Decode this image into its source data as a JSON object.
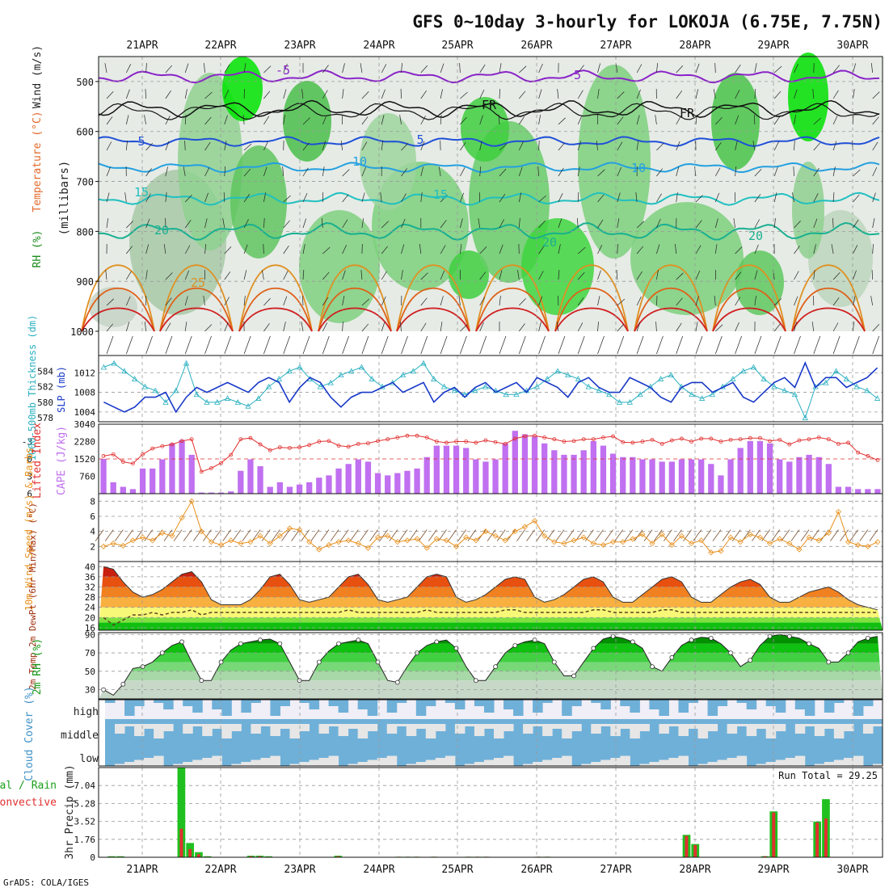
{
  "title": "GFS 0~10day 3-hourly for LOKOJA (6.75E, 7.75N)",
  "footer": "GrADS: COLA/IGES",
  "dates": [
    "21APR",
    "22APR",
    "23APR",
    "24APR",
    "25APR",
    "26APR",
    "27APR",
    "28APR",
    "29APR",
    "30APR"
  ],
  "chart_data": [
    {
      "type": "area",
      "panel": "pressure-time",
      "ylabel": "(millibars)",
      "side_labels": {
        "rh": "RH (%)",
        "temperature": "Temperature (°C)",
        "wind": "Wind (m/s)"
      },
      "yticks": [
        500,
        600,
        700,
        800,
        900,
        1000
      ],
      "ylim": [
        1000,
        450
      ],
      "contour_labels": [
        "-5",
        "-5",
        "FR",
        "FR",
        "5",
        "5",
        "10",
        "10",
        "15",
        "15",
        "20",
        "20",
        "20",
        "25"
      ]
    },
    {
      "type": "line",
      "panel": "slp-thickness",
      "ylabel_left": "1000-500mb Thickness (dm)",
      "ylabel_right": "SLP (mb)",
      "yticks_left": [
        578,
        580,
        582,
        584
      ],
      "yticks_right": [
        1004,
        1008,
        1012
      ],
      "series": [
        {
          "name": "Thickness",
          "color": "#2ab0c0",
          "values": [
            584.5,
            585,
            584,
            583,
            582,
            581.5,
            580,
            581.5,
            585,
            581,
            580,
            580,
            580.5,
            580,
            579.5,
            580.5,
            582,
            583,
            584,
            584.5,
            583,
            582,
            582.5,
            583.5,
            584,
            584.5,
            583,
            582,
            582.5,
            583.5,
            584,
            585,
            583,
            582,
            581.5,
            581,
            581.5,
            582,
            581.5,
            581,
            581,
            581.5,
            582,
            583,
            584,
            583.5,
            583,
            582,
            581.5,
            581,
            580,
            580,
            581,
            582,
            583,
            583.5,
            582,
            581,
            580.5,
            581,
            582,
            583,
            584,
            584.5,
            583,
            582,
            581.5,
            581,
            578,
            582,
            582.5,
            584,
            583,
            582,
            581.5,
            580.5
          ]
        },
        {
          "name": "SLP",
          "color": "#1838c8",
          "values": [
            1006,
            1005,
            1004,
            1005,
            1007,
            1007,
            1008,
            1004,
            1007,
            1009,
            1008,
            1009,
            1010,
            1009,
            1008,
            1010,
            1011,
            1010,
            1006,
            1009,
            1011,
            1010,
            1007,
            1005,
            1007,
            1008,
            1008,
            1009,
            1010,
            1008,
            1009,
            1010,
            1006,
            1008,
            1009,
            1007,
            1009,
            1010,
            1008,
            1009,
            1010,
            1008,
            1011,
            1010,
            1009,
            1007,
            1010,
            1011,
            1009,
            1008,
            1008,
            1011,
            1010,
            1009,
            1007,
            1006,
            1009,
            1010,
            1010,
            1008,
            1009,
            1010,
            1007,
            1006,
            1008,
            1010,
            1011,
            1009,
            1014,
            1009,
            1011,
            1011,
            1009,
            1010,
            1011,
            1013
          ]
        }
      ]
    },
    {
      "type": "bar",
      "panel": "cape-lifted-index",
      "ylabel_left": "Lifted Index",
      "ylabel_right": "CAPE (J/kg)",
      "yticks_li": [
        -3,
        0,
        3,
        6
      ],
      "yticks_cape": [
        760,
        1520,
        2280,
        3040
      ],
      "ylim_cape": [
        0,
        3040
      ],
      "cape": [
        1520,
        500,
        300,
        200,
        1100,
        1100,
        1500,
        2200,
        2350,
        1700,
        50,
        50,
        50,
        100,
        1000,
        1500,
        1200,
        300,
        500,
        300,
        400,
        500,
        700,
        800,
        1100,
        1300,
        1500,
        1400,
        900,
        800,
        900,
        1000,
        1100,
        1600,
        2100,
        2100,
        2100,
        2000,
        1500,
        1400,
        1500,
        2200,
        2750,
        2600,
        2500,
        2200,
        1900,
        1700,
        1700,
        1900,
        2300,
        2100,
        1750,
        1600,
        1600,
        1500,
        1500,
        1400,
        1400,
        1500,
        1500,
        1500,
        1300,
        800,
        1500,
        2000,
        2300,
        2300,
        2200,
        1500,
        1400,
        1600,
        1700,
        1600,
        1300,
        300,
        300,
        200,
        200,
        200
      ],
      "lifted_index": [
        -0.5,
        -0.8,
        0.5,
        0.8,
        -0.8,
        -1.8,
        -2.2,
        -2.5,
        -3.1,
        -3.4,
        2.2,
        1.6,
        0.7,
        -0.7,
        -3.4,
        -3.6,
        -2.5,
        -1.5,
        -2.0,
        -1.9,
        -2.0,
        -2.4,
        -3.0,
        -3.1,
        -2.3,
        -2.1,
        -2.6,
        -2.7,
        -3.1,
        -3.4,
        -3.7,
        -4.0,
        -4.0,
        -3.7,
        -3.0,
        -2.8,
        -3.0,
        -3.0,
        -2.8,
        -3.2,
        -2.9,
        -2.6,
        -3.5,
        -3.9,
        -4.0,
        -3.7,
        -3.4,
        -3.0,
        -3.1,
        -3.4,
        -3.4,
        -3.7,
        -3.9,
        -2.9,
        -2.8,
        -3.0,
        -3.3,
        -2.6,
        -3.2,
        -3.5,
        -3.0,
        -3.5,
        -3.5,
        -3.0,
        -3.3,
        -3.4,
        -3.6,
        -3.6,
        -3.1,
        -3.3,
        -2.5,
        -3.2,
        -3.4,
        -3.7,
        -3.4,
        -2.6,
        -2.8,
        -1.1,
        -0.5,
        0.2
      ]
    },
    {
      "type": "line",
      "panel": "10m-wind",
      "ylabel": "10m Wind Speed (m/s) & Barbs",
      "yticks": [
        2,
        4,
        6,
        8
      ],
      "ylim": [
        0,
        9
      ],
      "series": [
        {
          "name": "10m Wind Speed",
          "color": "#e8901c",
          "values": [
            2.0,
            2.4,
            2.1,
            2.8,
            3.2,
            2.8,
            3.8,
            3.4,
            5.8,
            8.0,
            4.0,
            2.6,
            2.2,
            2.8,
            2.4,
            2.6,
            3.4,
            2.4,
            3.4,
            4.4,
            4.2,
            2.6,
            1.6,
            2.2,
            2.6,
            2.8,
            2.4,
            1.8,
            3.2,
            3.4,
            2.6,
            2.8,
            3.0,
            1.8,
            3.0,
            2.8,
            2.0,
            3.2,
            2.8,
            4.0,
            3.4,
            2.8,
            4.0,
            4.6,
            5.4,
            3.4,
            2.6,
            2.4,
            2.8,
            3.2,
            2.4,
            2.2,
            2.6,
            2.6,
            3.0,
            3.6,
            2.4,
            3.6,
            2.2,
            3.4,
            2.4,
            2.8,
            1.2,
            1.4,
            3.2,
            2.6,
            3.6,
            3.2,
            2.4,
            3.0,
            2.4,
            1.6,
            3.2,
            2.8,
            3.8,
            6.6,
            2.6,
            2.2,
            2.0,
            2.6
          ]
        }
      ]
    },
    {
      "type": "area",
      "panel": "2m-temp",
      "ylabel": "2m Temp 2m DewPt (6hr Min/Max) (°C)",
      "yticks": [
        16,
        20,
        24,
        28,
        32,
        36,
        40
      ],
      "ylim": [
        15,
        42
      ],
      "series": [
        {
          "name": "2m Temp",
          "values": [
            40,
            39,
            34,
            30,
            28,
            29,
            31,
            34,
            37,
            38,
            34,
            27,
            25,
            25,
            25,
            27,
            31,
            36,
            37,
            33,
            27,
            26,
            27,
            28,
            32,
            36,
            37,
            33,
            27,
            26,
            27,
            28,
            32,
            36,
            37,
            36,
            28,
            26,
            27,
            29,
            32,
            35,
            36,
            35,
            28,
            26,
            27,
            29,
            32,
            35,
            36,
            34,
            28,
            26,
            26,
            29,
            32,
            35,
            36,
            34,
            28,
            26,
            26,
            29,
            32,
            34,
            35,
            33,
            28,
            26,
            26,
            28,
            30,
            31,
            32,
            30,
            27,
            25,
            24,
            23
          ]
        },
        {
          "name": "2m DewPt",
          "values": [
            20,
            17,
            19,
            21,
            21,
            22,
            21,
            22,
            22,
            23,
            21,
            22,
            22,
            22,
            22,
            22,
            22,
            22,
            22,
            22,
            22,
            22,
            22,
            22,
            22,
            23,
            22,
            22,
            22,
            22,
            22,
            22,
            22,
            23,
            22,
            22,
            22,
            22,
            22,
            22,
            22,
            23,
            23,
            22,
            22,
            22,
            22,
            22,
            22,
            22,
            23,
            23,
            22,
            22,
            22,
            22,
            22,
            23,
            23,
            22,
            22,
            22,
            22,
            22,
            22,
            22,
            22,
            22,
            22,
            22,
            22,
            22,
            22,
            22,
            22,
            22,
            22,
            22,
            22,
            22
          ]
        }
      ]
    },
    {
      "type": "area",
      "panel": "2m-rh",
      "ylabel": "2m RH (%)",
      "yticks": [
        30,
        50,
        70,
        90
      ],
      "ylim": [
        20,
        92
      ],
      "series": [
        {
          "name": "2m RH",
          "values": [
            30,
            24,
            36,
            53,
            55,
            60,
            70,
            78,
            82,
            60,
            40,
            40,
            60,
            73,
            80,
            82,
            84,
            85,
            80,
            60,
            40,
            40,
            60,
            72,
            80,
            82,
            84,
            80,
            60,
            40,
            38,
            55,
            70,
            78,
            82,
            84,
            75,
            55,
            40,
            40,
            55,
            70,
            78,
            82,
            84,
            80,
            60,
            45,
            45,
            60,
            75,
            85,
            88,
            86,
            82,
            75,
            55,
            50,
            65,
            78,
            84,
            87,
            86,
            80,
            70,
            55,
            62,
            78,
            88,
            90,
            88,
            86,
            80,
            75,
            60,
            60,
            70,
            82,
            86,
            88
          ]
        }
      ]
    },
    {
      "type": "heatmap",
      "panel": "cloud-cover",
      "ylabel": "Cloud Cover (%)",
      "rows": [
        "high",
        "middle",
        "low"
      ]
    },
    {
      "type": "bar",
      "panel": "precip",
      "ylabel": "3hr Precip (mm)",
      "legend": [
        "Total / Rain",
        "Convective"
      ],
      "run_total_label": "Run Total = 29.25",
      "yticks": [
        0,
        1.76,
        3.52,
        5.28,
        7.04
      ],
      "ylim": [
        0,
        8.8
      ],
      "total": [
        0,
        0.1,
        0.1,
        0,
        0,
        0,
        0,
        0,
        0,
        8.8,
        1.4,
        0.5,
        0.1,
        0,
        0,
        0,
        0,
        0.15,
        0.15,
        0.1,
        0,
        0,
        0,
        0,
        0,
        0,
        0,
        0.15,
        0,
        0,
        0,
        0,
        0,
        0,
        0.05,
        0.05,
        0.05,
        0,
        0.05,
        0,
        0,
        0,
        0.05,
        0.05,
        0.05,
        0,
        0,
        0,
        0,
        0,
        0.05,
        0.05,
        0,
        0,
        0,
        0,
        0,
        0,
        0,
        0,
        0,
        0,
        0,
        0,
        0,
        0,
        0,
        2.2,
        1.3,
        0,
        0,
        0,
        0,
        0,
        0,
        0,
        0.1,
        4.5,
        0,
        0,
        0,
        0,
        3.5,
        5.7,
        0,
        0,
        0,
        0,
        0,
        0
      ],
      "convective": [
        0,
        0.05,
        0.05,
        0,
        0,
        0,
        0,
        0,
        0,
        2.8,
        0.8,
        0.3,
        0.05,
        0,
        0,
        0,
        0,
        0.1,
        0.1,
        0.05,
        0,
        0,
        0,
        0,
        0,
        0,
        0,
        0.1,
        0,
        0,
        0,
        0,
        0,
        0,
        0.05,
        0.05,
        0.05,
        0,
        0.05,
        0,
        0,
        0,
        0.05,
        0.05,
        0.05,
        0,
        0,
        0,
        0,
        0,
        0.05,
        0.05,
        0,
        0,
        0,
        0,
        0,
        0,
        0,
        0,
        0,
        0,
        0,
        0,
        0,
        0,
        0,
        2.1,
        1.2,
        0,
        0,
        0,
        0,
        0,
        0,
        0,
        0.1,
        4.4,
        0,
        0,
        0,
        0,
        3.4,
        3.8,
        0,
        0,
        0,
        0,
        0,
        0
      ]
    }
  ]
}
